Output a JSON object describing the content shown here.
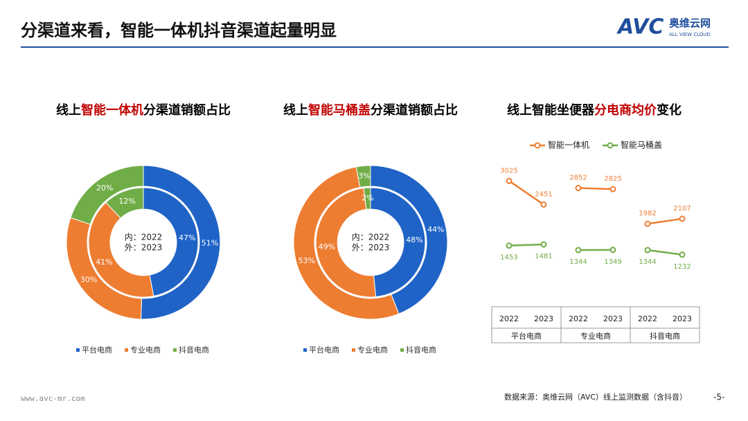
{
  "header": {
    "title": "分渠道来看，智能一体机抖音渠道起量明显",
    "logo": "AVC",
    "logo_cn": "奥维云网",
    "logo_en": "ALL VIEW CLOUD"
  },
  "chart_data": [
    {
      "type": "donut",
      "title": [
        {
          "text": "线上",
          "color": "#000000"
        },
        {
          "text": "智能一体机",
          "color": "#c00000"
        },
        {
          "text": "分渠道销额占比",
          "color": "#000000"
        }
      ],
      "categories": [
        "平台电商",
        "专业电商",
        "抖音电商"
      ],
      "colors": [
        "#1f63c6",
        "#ed7d31",
        "#70ad47"
      ],
      "center_label": [
        "内：2022",
        "外：2023"
      ],
      "series": [
        {
          "values": [
            47,
            41,
            12
          ],
          "value_labels": [
            "47%",
            "41%",
            "12%"
          ]
        },
        {
          "values": [
            51,
            30,
            20
          ],
          "value_labels": [
            "51%",
            "30%",
            "20%"
          ]
        }
      ]
    },
    {
      "type": "donut",
      "title": [
        {
          "text": "线上",
          "color": "#000000"
        },
        {
          "text": "智能马桶盖",
          "color": "#c00000"
        },
        {
          "text": "分渠道销额占比",
          "color": "#000000"
        }
      ],
      "categories": [
        "平台电商",
        "专业电商",
        "抖音电商"
      ],
      "colors": [
        "#1f63c6",
        "#ed7d31",
        "#70ad47"
      ],
      "center_label": [
        "内：2022",
        "外：2023"
      ],
      "series": [
        {
          "values": [
            48,
            49,
            2
          ],
          "value_labels": [
            "48%",
            "49%",
            "2%"
          ]
        },
        {
          "values": [
            44,
            53,
            3
          ],
          "value_labels": [
            "44%",
            "53%",
            "3%"
          ]
        }
      ]
    },
    {
      "type": "line",
      "title": [
        {
          "text": "线上智能坐便器",
          "color": "#000000"
        },
        {
          "text": "分电商均价",
          "color": "#c00000"
        },
        {
          "text": "变化",
          "color": "#000000"
        }
      ],
      "categories": [
        "2022",
        "2023",
        "2022",
        "2023",
        "2022",
        "2023"
      ],
      "groups": [
        "平台电商",
        "专业电商",
        "抖音电商"
      ],
      "ylim": [
        0,
        3400
      ],
      "series": [
        {
          "name": "智能一体机",
          "color": "#ed7d31",
          "values": [
            3025,
            2451,
            2852,
            2825,
            1982,
            2107
          ]
        },
        {
          "name": "智能马桶盖",
          "color": "#70ad47",
          "values": [
            1453,
            1481,
            1344,
            1349,
            1344,
            1232
          ]
        }
      ]
    }
  ],
  "footer": {
    "website": "www.avc-mr.com",
    "source": "数据来源：奥维云网（AVC）线上监测数据（含抖音）",
    "page": "-5-"
  }
}
